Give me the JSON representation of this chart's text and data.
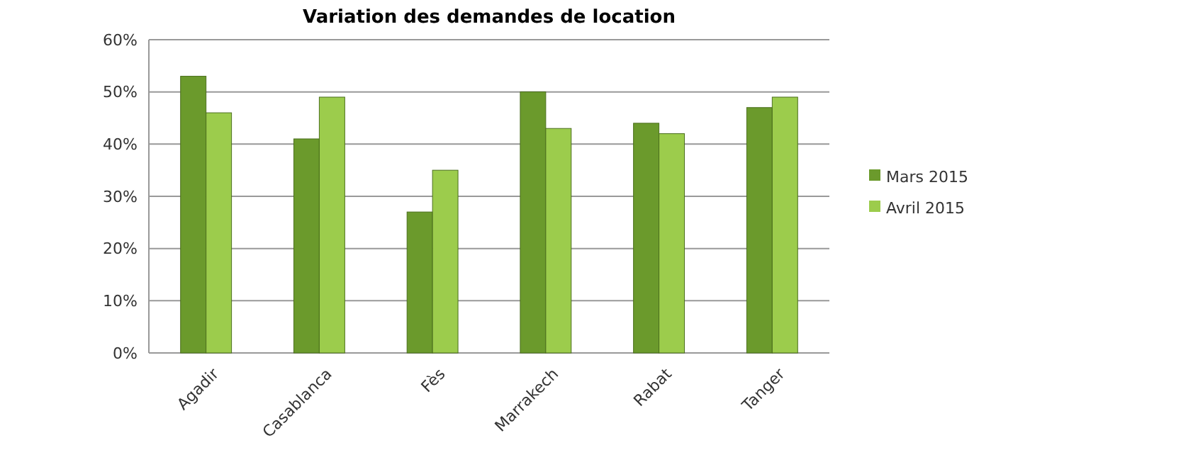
{
  "chart_data": {
    "type": "bar",
    "title": "Variation des demandes de location",
    "categories": [
      "Agadir",
      "Casablanca",
      "Fès",
      "Marrakech",
      "Rabat",
      "Tanger"
    ],
    "series": [
      {
        "name": "Mars 2015",
        "color": "#6b9a2c",
        "values": [
          53,
          41,
          27,
          50,
          44,
          47
        ]
      },
      {
        "name": "Avril 2015",
        "color": "#9ccc4c",
        "values": [
          46,
          49,
          35,
          43,
          42,
          49
        ]
      }
    ],
    "ylim": [
      0,
      60
    ],
    "yticks": [
      {
        "value": 0,
        "label": "0%"
      },
      {
        "value": 10,
        "label": "10%"
      },
      {
        "value": 20,
        "label": "20%"
      },
      {
        "value": 30,
        "label": "30%"
      },
      {
        "value": 40,
        "label": "40%"
      },
      {
        "value": 50,
        "label": "50%"
      },
      {
        "value": 60,
        "label": "60%"
      }
    ],
    "grid": "y",
    "legend": "right"
  }
}
